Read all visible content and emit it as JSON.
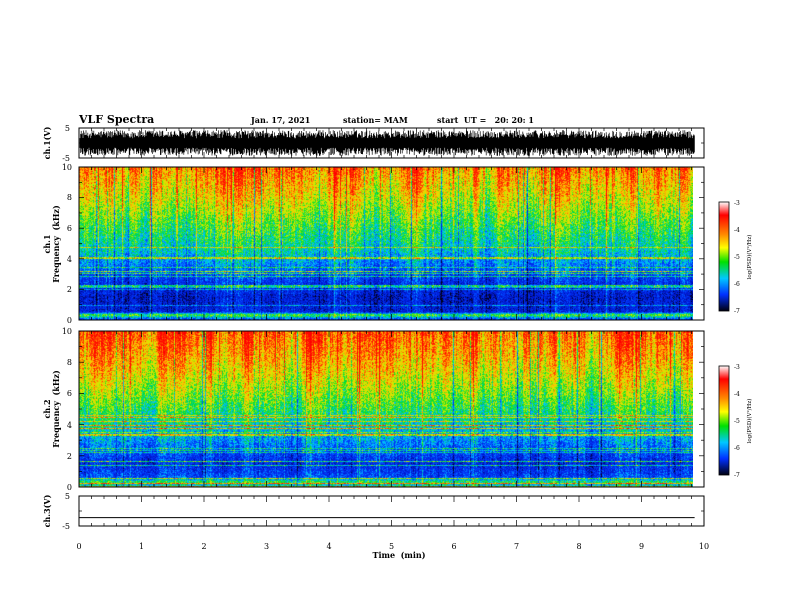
{
  "chart_data": [
    {
      "type": "line",
      "panel": "ch1-waveform",
      "title": "VLF Spectra",
      "date": "Jan. 17, 2021",
      "station": "station= MAM",
      "start_ut": "start  UT =   20: 20: 1",
      "ylabel": "ch.1(V)",
      "ylim": [
        -5,
        5
      ],
      "yticks": [
        "5",
        "-5"
      ],
      "description": "dense noise waveform spanning roughly -4.5 to 4.5 V throughout 0-9.8 min"
    },
    {
      "type": "heatmap",
      "panel": "ch1-spectrogram",
      "ylabel_line1": "ch.1",
      "ylabel_line2": "Frequency  (kHz)",
      "ylim": [
        0,
        10
      ],
      "yticks": [
        "0",
        "2",
        "4",
        "6",
        "8",
        "10"
      ],
      "xlim": [
        0,
        9.85
      ],
      "colorbar": {
        "label": "log(PSD)(V²/Hz)",
        "range": [
          -7,
          -3
        ],
        "ticks": [
          "-3",
          "-4",
          "-5",
          "-6",
          "-7"
        ]
      },
      "profile": [
        {
          "freq_khz": 0.0,
          "level": -6.0
        },
        {
          "freq_khz": 0.3,
          "level": -4.6
        },
        {
          "freq_khz": 0.5,
          "level": -6.3
        },
        {
          "freq_khz": 1.5,
          "level": -6.4
        },
        {
          "freq_khz": 3.0,
          "level": -5.9
        },
        {
          "freq_khz": 4.5,
          "level": -5.2
        },
        {
          "freq_khz": 6.0,
          "level": -4.8
        },
        {
          "freq_khz": 8.0,
          "level": -4.2
        },
        {
          "freq_khz": 10.0,
          "level": -3.7
        }
      ]
    },
    {
      "type": "heatmap",
      "panel": "ch2-spectrogram",
      "ylabel_line1": "ch.2",
      "ylabel_line2": "Frequency  (kHz)",
      "ylim": [
        0,
        10
      ],
      "yticks": [
        "0",
        "2",
        "4",
        "6",
        "8",
        "10"
      ],
      "xlim": [
        0,
        9.85
      ],
      "colorbar": {
        "label": "log(PSD)(V²/Hz)",
        "range": [
          -7,
          -3
        ],
        "ticks": [
          "-3",
          "-4",
          "-5",
          "-6",
          "-7"
        ]
      },
      "profile": [
        {
          "freq_khz": 0.0,
          "level": -5.4
        },
        {
          "freq_khz": 0.3,
          "level": -4.8
        },
        {
          "freq_khz": 0.6,
          "level": -5.9
        },
        {
          "freq_khz": 1.5,
          "level": -6.2
        },
        {
          "freq_khz": 3.0,
          "level": -5.5
        },
        {
          "freq_khz": 5.0,
          "level": -4.8
        },
        {
          "freq_khz": 7.0,
          "level": -4.2
        },
        {
          "freq_khz": 8.5,
          "level": -3.8
        },
        {
          "freq_khz": 10.0,
          "level": -3.5
        }
      ]
    },
    {
      "type": "line",
      "panel": "ch3-waveform",
      "ylabel": "ch.3(V)",
      "ylim": [
        -5,
        5
      ],
      "yticks": [
        "5",
        "-5"
      ],
      "x": [
        0,
        9.85
      ],
      "y": [
        -2.2,
        -2.2
      ],
      "xlabel": "Time  (min)",
      "xlim": [
        0,
        10
      ],
      "xticks": [
        "0",
        "1",
        "2",
        "3",
        "4",
        "5",
        "6",
        "7",
        "8",
        "9",
        "10"
      ]
    }
  ]
}
